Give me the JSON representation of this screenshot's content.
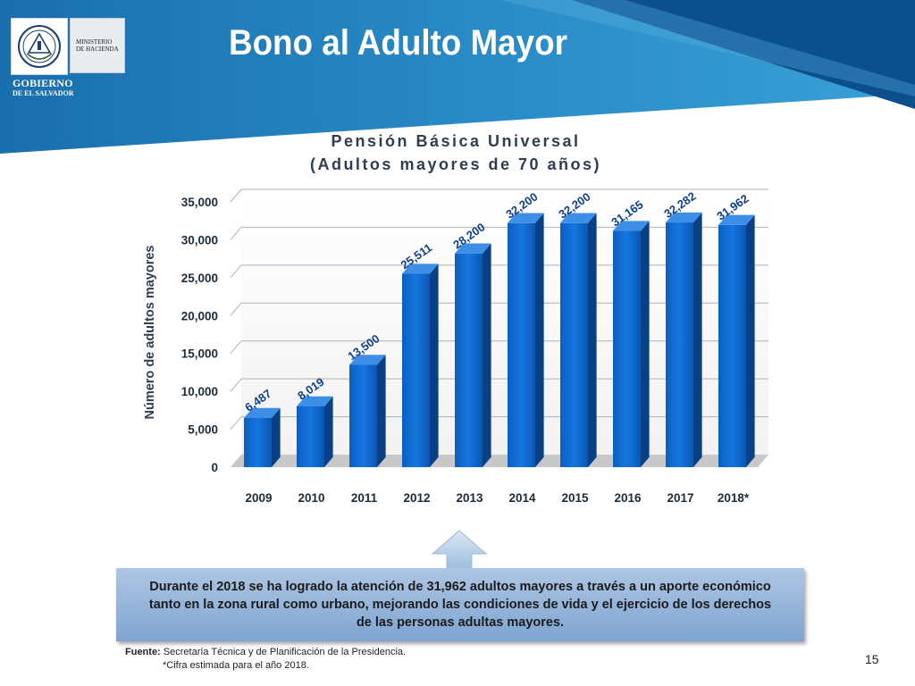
{
  "header": {
    "title": "Bono al Adulto Mayor",
    "ministry": [
      "MINISTERIO",
      "DE HACIENDA"
    ],
    "government": [
      "GOBIERNO",
      "DE EL SALVADOR"
    ]
  },
  "chart_data": {
    "type": "bar",
    "title": [
      "Pensión Básica Universal",
      "(Adultos mayores de 70 años)"
    ],
    "ylabel": "Número de adultos mayores",
    "xlabel": "",
    "categories": [
      "2009",
      "2010",
      "2011",
      "2012",
      "2013",
      "2014",
      "2015",
      "2016",
      "2017",
      "2018*"
    ],
    "values": [
      6487,
      8019,
      13500,
      25511,
      28200,
      32200,
      32200,
      31165,
      32282,
      31962
    ],
    "data_labels": [
      "6,487",
      "8,019",
      "13,500",
      "25,511",
      "28,200",
      "32,200",
      "32,200",
      "31,165",
      "32,282",
      "31,962"
    ],
    "yticks": [
      "0",
      "5,000",
      "10,000",
      "15,000",
      "20,000",
      "25,000",
      "30,000",
      "35,000"
    ],
    "ylim": [
      0,
      35000
    ],
    "grid": true,
    "bar_color": "#0a64c8"
  },
  "callout": {
    "text": "Durante el 2018 se ha logrado la atención de 31,962 adultos mayores a través a un aporte económico tanto en la zona rural como urbano, mejorando las condiciones de vida y el ejercicio de los derechos de las personas adultas mayores."
  },
  "footer": {
    "source_label": "Fuente:",
    "source_text": "Secretaría Técnica y de Planificación de la Presidencia.",
    "note": "*Cifra estimada para el año 2018.",
    "page_number": "15"
  },
  "colors": {
    "header_dark": "#1a6aa6",
    "header_light": "#2f8fc6",
    "navy_stripe": "#0b4f8c"
  }
}
